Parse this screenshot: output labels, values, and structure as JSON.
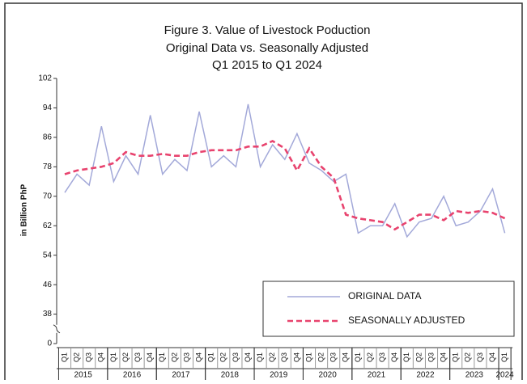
{
  "chart_data": {
    "type": "line",
    "title": [
      "Figure 3. Value of Livestock Poduction",
      "Original Data vs. Seasonally Adjusted",
      "Q1 2015 to Q1 2024"
    ],
    "ylabel": "in Billion PhP",
    "categories": [
      "Q1",
      "Q2",
      "Q3",
      "Q4",
      "Q1",
      "Q2",
      "Q3",
      "Q4",
      "Q1",
      "Q2",
      "Q3",
      "Q4",
      "Q1",
      "Q2",
      "Q3",
      "Q4",
      "Q1",
      "Q2",
      "Q3",
      "Q4",
      "Q1",
      "Q2",
      "Q3",
      "Q4",
      "Q1",
      "Q2",
      "Q3",
      "Q4",
      "Q1",
      "Q2",
      "Q3",
      "Q4",
      "Q1",
      "Q2",
      "Q3",
      "Q4",
      "Q1"
    ],
    "year_groups": [
      {
        "label": "2015",
        "span": 4
      },
      {
        "label": "2016",
        "span": 4
      },
      {
        "label": "2017",
        "span": 4
      },
      {
        "label": "2018",
        "span": 4
      },
      {
        "label": "2019",
        "span": 4
      },
      {
        "label": "2020",
        "span": 4
      },
      {
        "label": "2021",
        "span": 4
      },
      {
        "label": "2022",
        "span": 4
      },
      {
        "label": "2023",
        "span": 4
      },
      {
        "label": "2024",
        "span": 1
      }
    ],
    "series": [
      {
        "name": "ORIGINAL DATA",
        "color": "#a3a9d9",
        "style": "solid",
        "values": [
          71,
          76,
          73,
          89,
          74,
          81,
          76,
          92,
          76,
          80,
          77,
          93,
          78,
          81,
          78,
          95,
          78,
          84,
          80,
          87,
          79,
          77,
          74,
          76,
          60,
          62,
          62,
          68,
          59,
          63,
          64,
          70,
          62,
          63,
          66,
          72,
          60
        ]
      },
      {
        "name": "SEASONALLY ADJUSTED",
        "color": "#e8436e",
        "style": "dashed",
        "values": [
          76,
          77,
          77.5,
          78,
          79,
          82,
          81,
          81,
          81.5,
          81,
          81,
          82,
          82.5,
          82.5,
          82.5,
          83.5,
          83.5,
          85,
          83,
          77,
          83,
          78,
          75,
          65,
          64,
          63.5,
          63,
          61,
          63,
          65,
          65,
          63.5,
          66,
          65.5,
          66,
          65.5,
          64
        ]
      }
    ],
    "ylim": [
      0,
      102
    ],
    "yticks": [
      0,
      38,
      46,
      54,
      62,
      70,
      78,
      86,
      94,
      102
    ],
    "axis_break": true,
    "legend": "lower right"
  }
}
